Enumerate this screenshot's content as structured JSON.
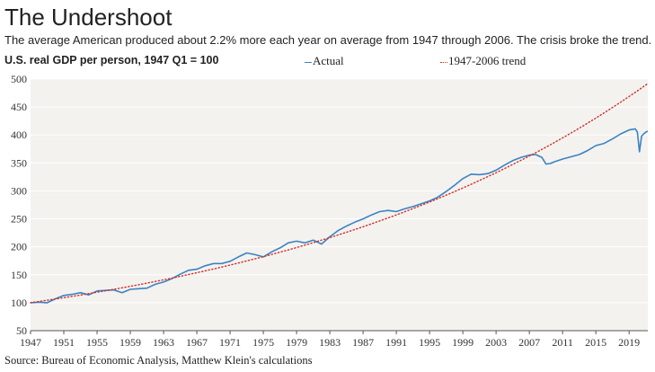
{
  "header": {
    "title": "The Undershoot",
    "subtitle": "The average American produced about 2.2% more each year on average from 1947 through 2006. The crisis broke the trend."
  },
  "source": "Source: Bureau of Economic Analysis, Matthew Klein's calculations",
  "colors": {
    "actual": "#3a83c4",
    "trend": "#d0302b",
    "plot_bg": "#f4f2ef",
    "grid": "#ffffff"
  },
  "chart_data": {
    "type": "line",
    "title": "U.S. real GDP per person, 1947 Q1 = 100",
    "xlabel": "",
    "ylabel": "U.S. real GDP per person, 1947 Q1 = 100",
    "xlim": [
      1947,
      2021.25
    ],
    "ylim": [
      50,
      500
    ],
    "y_ticks": [
      50,
      100,
      150,
      200,
      250,
      300,
      350,
      400,
      450,
      500
    ],
    "x_ticks": [
      1947,
      1951,
      1955,
      1959,
      1963,
      1967,
      1971,
      1975,
      1979,
      1983,
      1987,
      1991,
      1995,
      1999,
      2003,
      2007,
      2011,
      2015,
      2019
    ],
    "x_tick_labels": [
      "1947",
      "1951",
      "1955",
      "1959",
      "1963",
      "1967",
      "1971",
      "1975",
      "1979",
      "1983",
      "1987",
      "1991",
      "1995",
      "1999",
      "2003",
      "2007",
      "2011",
      "2015",
      "2019"
    ],
    "legend": {
      "position": "top",
      "actual_label": "Actual",
      "trend_label": "1947-2006 trend"
    },
    "series": [
      {
        "name": "Actual",
        "style": "solid",
        "x": [
          1947,
          1948,
          1949,
          1950,
          1951,
          1952,
          1953,
          1954,
          1955,
          1956,
          1957,
          1958,
          1959,
          1960,
          1961,
          1962,
          1963,
          1964,
          1965,
          1966,
          1967,
          1968,
          1969,
          1970,
          1971,
          1972,
          1973,
          1974,
          1975,
          1976,
          1977,
          1978,
          1979,
          1980,
          1981,
          1982,
          1983,
          1984,
          1985,
          1986,
          1987,
          1988,
          1989,
          1990,
          1991,
          1992,
          1993,
          1994,
          1995,
          1996,
          1997,
          1998,
          1999,
          2000,
          2001,
          2002,
          2003,
          2004,
          2005,
          2006,
          2007,
          2007.75,
          2008.5,
          2009,
          2009.5,
          2010,
          2011,
          2012,
          2013,
          2014,
          2015,
          2016,
          2017,
          2018,
          2019,
          2019.75,
          2020,
          2020.25,
          2020.5,
          2020.75,
          2021,
          2021.25
        ],
        "values": [
          100,
          101,
          100,
          107,
          113,
          115,
          118,
          114,
          121,
          122,
          123,
          118,
          124,
          125,
          126,
          133,
          137,
          143,
          151,
          158,
          160,
          166,
          170,
          170,
          174,
          182,
          189,
          186,
          182,
          191,
          198,
          207,
          210,
          207,
          212,
          205,
          218,
          229,
          237,
          244,
          250,
          257,
          263,
          265,
          263,
          268,
          272,
          277,
          282,
          289,
          299,
          310,
          322,
          330,
          329,
          331,
          337,
          346,
          354,
          360,
          364,
          365,
          360,
          348,
          349,
          352,
          357,
          361,
          365,
          372,
          381,
          385,
          393,
          402,
          409,
          411,
          405,
          370,
          398,
          402,
          405,
          407
        ]
      },
      {
        "name": "1947-2006 trend",
        "style": "dotted",
        "start_year": 1947,
        "end_year": 2021.25,
        "start_value": 100,
        "end_value": 492
      }
    ]
  }
}
